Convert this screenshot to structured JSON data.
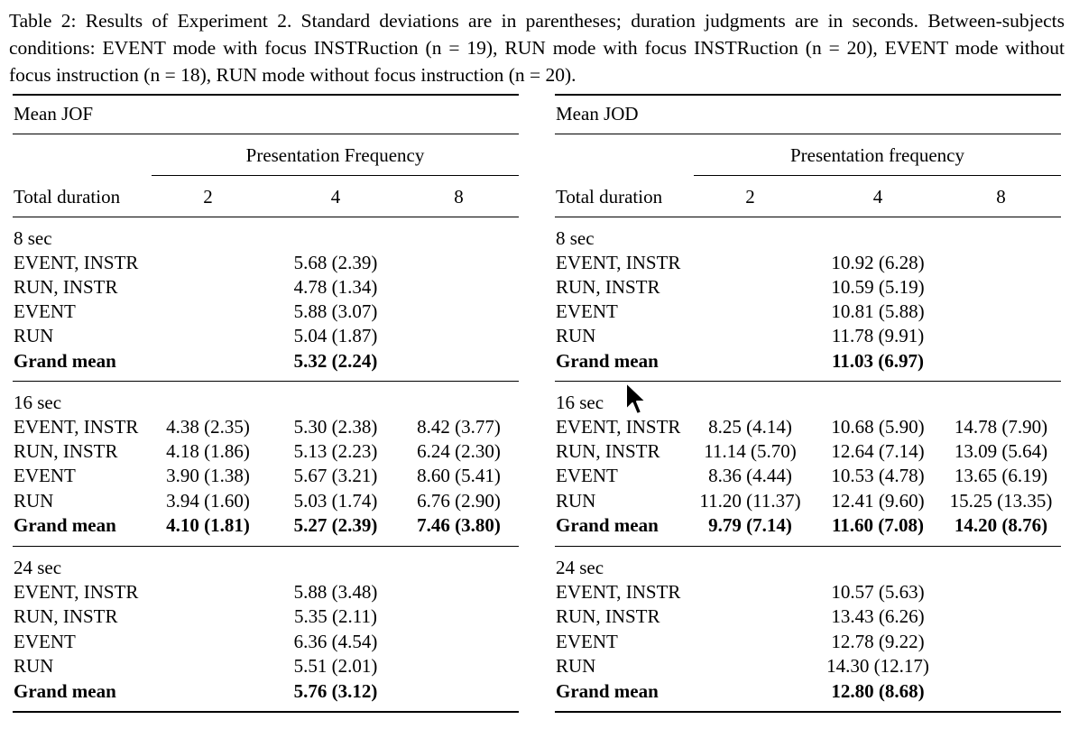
{
  "caption": "Table 2: Results of Experiment 2. Standard deviations are in parentheses; duration judgments are in seconds. Between-subjects conditions: EVENT mode with focus INSTRuction (n = 19), RUN mode with focus INSTRuction (n = 20), EVENT mode without focus instruction (n = 18), RUN mode without focus instruction (n = 20).",
  "tables": [
    {
      "title": "Mean JOF",
      "span_header": "Presentation Frequency",
      "col_label": "Total duration",
      "col_freqs": [
        "2",
        "4",
        "8"
      ],
      "sections": [
        {
          "name": "8 sec",
          "rows": [
            {
              "label": "EVENT, INSTR",
              "v2": "",
              "v4": "5.68 (2.39)",
              "v8": ""
            },
            {
              "label": "RUN, INSTR",
              "v2": "",
              "v4": "4.78 (1.34)",
              "v8": ""
            },
            {
              "label": "EVENT",
              "v2": "",
              "v4": "5.88 (3.07)",
              "v8": ""
            },
            {
              "label": "RUN",
              "v2": "",
              "v4": "5.04 (1.87)",
              "v8": ""
            },
            {
              "label": "Grand mean",
              "v2": "",
              "v4": "5.32 (2.24)",
              "v8": ""
            }
          ]
        },
        {
          "name": "16 sec",
          "rows": [
            {
              "label": "EVENT, INSTR",
              "v2": "4.38 (2.35)",
              "v4": "5.30 (2.38)",
              "v8": "8.42 (3.77)"
            },
            {
              "label": "RUN, INSTR",
              "v2": "4.18 (1.86)",
              "v4": "5.13 (2.23)",
              "v8": "6.24 (2.30)"
            },
            {
              "label": "EVENT",
              "v2": "3.90 (1.38)",
              "v4": "5.67 (3.21)",
              "v8": "8.60 (5.41)"
            },
            {
              "label": "RUN",
              "v2": "3.94 (1.60)",
              "v4": "5.03 (1.74)",
              "v8": "6.76 (2.90)"
            },
            {
              "label": "Grand mean",
              "v2": "4.10 (1.81)",
              "v4": "5.27 (2.39)",
              "v8": "7.46 (3.80)"
            }
          ]
        },
        {
          "name": "24 sec",
          "rows": [
            {
              "label": "EVENT, INSTR",
              "v2": "",
              "v4": "5.88 (3.48)",
              "v8": ""
            },
            {
              "label": "RUN, INSTR",
              "v2": "",
              "v4": "5.35 (2.11)",
              "v8": ""
            },
            {
              "label": "EVENT",
              "v2": "",
              "v4": "6.36 (4.54)",
              "v8": ""
            },
            {
              "label": "RUN",
              "v2": "",
              "v4": "5.51 (2.01)",
              "v8": ""
            },
            {
              "label": "Grand mean",
              "v2": "",
              "v4": "5.76 (3.12)",
              "v8": ""
            }
          ]
        }
      ]
    },
    {
      "title": "Mean JOD",
      "span_header": "Presentation frequency",
      "col_label": "Total duration",
      "col_freqs": [
        "2",
        "4",
        "8"
      ],
      "sections": [
        {
          "name": "8 sec",
          "rows": [
            {
              "label": "EVENT, INSTR",
              "v2": "",
              "v4": "10.92 (6.28)",
              "v8": ""
            },
            {
              "label": "RUN, INSTR",
              "v2": "",
              "v4": "10.59 (5.19)",
              "v8": ""
            },
            {
              "label": "EVENT",
              "v2": "",
              "v4": "10.81 (5.88)",
              "v8": ""
            },
            {
              "label": "RUN",
              "v2": "",
              "v4": "11.78 (9.91)",
              "v8": ""
            },
            {
              "label": "Grand mean",
              "v2": "",
              "v4": "11.03 (6.97)",
              "v8": ""
            }
          ]
        },
        {
          "name": "16 sec",
          "rows": [
            {
              "label": "EVENT, INSTR",
              "v2": "8.25 (4.14)",
              "v4": "10.68 (5.90)",
              "v8": "14.78 (7.90)"
            },
            {
              "label": "RUN, INSTR",
              "v2": "11.14 (5.70)",
              "v4": "12.64 (7.14)",
              "v8": "13.09 (5.64)"
            },
            {
              "label": "EVENT",
              "v2": "8.36 (4.44)",
              "v4": "10.53 (4.78)",
              "v8": "13.65 (6.19)"
            },
            {
              "label": "RUN",
              "v2": "11.20 (11.37)",
              "v4": "12.41 (9.60)",
              "v8": "15.25 (13.35)"
            },
            {
              "label": "Grand mean",
              "v2": "9.79 (7.14)",
              "v4": "11.60 (7.08)",
              "v8": "14.20 (8.76)"
            }
          ]
        },
        {
          "name": "24 sec",
          "rows": [
            {
              "label": "EVENT, INSTR",
              "v2": "",
              "v4": "10.57 (5.63)",
              "v8": ""
            },
            {
              "label": "RUN, INSTR",
              "v2": "",
              "v4": "13.43 (6.26)",
              "v8": ""
            },
            {
              "label": "EVENT",
              "v2": "",
              "v4": "12.78 (9.22)",
              "v8": ""
            },
            {
              "label": "RUN",
              "v2": "",
              "v4": "14.30 (12.17)",
              "v8": ""
            },
            {
              "label": "Grand mean",
              "v2": "",
              "v4": "12.80 (8.68)",
              "v8": ""
            }
          ]
        }
      ]
    }
  ],
  "cursor_icon": "mouse-pointer-icon"
}
